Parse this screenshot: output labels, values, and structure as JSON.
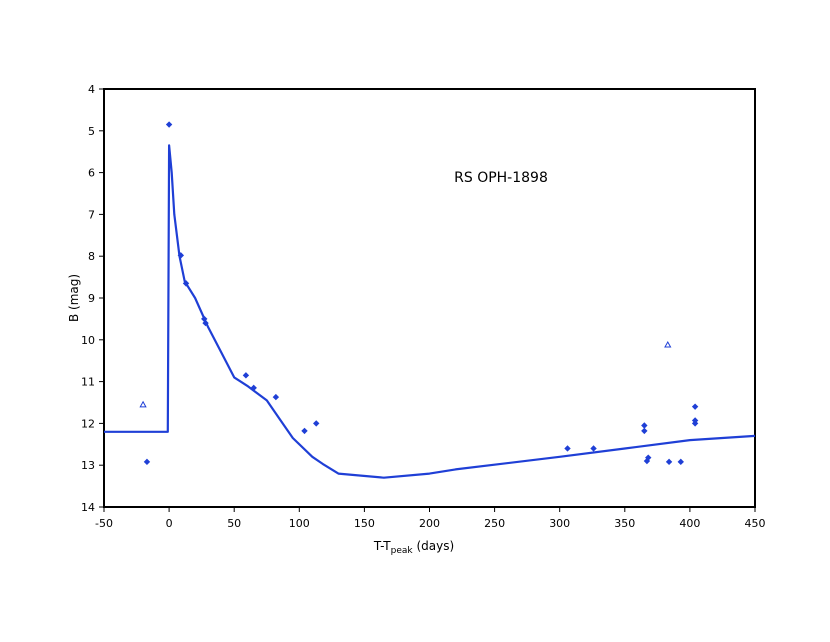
{
  "chart_data": {
    "type": "scatter",
    "title": "",
    "annotation": "RS OPH-1898",
    "xlabel": {
      "main": "T-T",
      "sub": "peak",
      "suffix": " (days)"
    },
    "ylabel": "B (mag)",
    "xlim": [
      -50,
      450
    ],
    "ylim": [
      4,
      14
    ],
    "y_inverted": true,
    "x_ticks": [
      -50,
      0,
      50,
      100,
      150,
      200,
      250,
      300,
      350,
      400,
      450
    ],
    "y_ticks": [
      4,
      5,
      6,
      7,
      8,
      9,
      10,
      11,
      12,
      13,
      14
    ],
    "grid": false,
    "legend": "none",
    "color": "#1f3fd6",
    "series": [
      {
        "marker": "diamond",
        "points": [
          [
            0,
            4.85
          ],
          [
            9,
            7.98
          ],
          [
            13,
            8.65
          ],
          [
            27,
            9.5
          ],
          [
            28,
            9.6
          ],
          [
            -17,
            12.92
          ],
          [
            59,
            10.85
          ],
          [
            65,
            11.15
          ],
          [
            82,
            11.37
          ],
          [
            104,
            12.18
          ],
          [
            113,
            12.0
          ],
          [
            306,
            12.6
          ],
          [
            326,
            12.6
          ],
          [
            365,
            12.05
          ],
          [
            365,
            12.18
          ],
          [
            367,
            12.9
          ],
          [
            368,
            12.82
          ],
          [
            384,
            12.92
          ],
          [
            393,
            12.92
          ],
          [
            404,
            11.6
          ],
          [
            404,
            11.93
          ],
          [
            404,
            12.0
          ]
        ]
      },
      {
        "marker": "triangle",
        "points": [
          [
            -20,
            11.55
          ],
          [
            383,
            10.12
          ]
        ]
      },
      {
        "marker": "line",
        "points": [
          [
            -50,
            12.2
          ],
          [
            -1,
            12.2
          ],
          [
            0,
            5.35
          ],
          [
            2,
            6.0
          ],
          [
            4,
            7.0
          ],
          [
            8,
            8.0
          ],
          [
            12,
            8.6
          ],
          [
            20,
            9.0
          ],
          [
            30,
            9.7
          ],
          [
            40,
            10.3
          ],
          [
            50,
            10.9
          ],
          [
            60,
            11.1
          ],
          [
            75,
            11.45
          ],
          [
            85,
            11.9
          ],
          [
            95,
            12.35
          ],
          [
            110,
            12.8
          ],
          [
            118,
            12.97
          ],
          [
            130,
            13.2
          ],
          [
            165,
            13.3
          ],
          [
            200,
            13.2
          ],
          [
            220,
            13.1
          ],
          [
            300,
            12.8
          ],
          [
            350,
            12.6
          ],
          [
            400,
            12.4
          ],
          [
            450,
            12.3
          ]
        ]
      }
    ]
  }
}
